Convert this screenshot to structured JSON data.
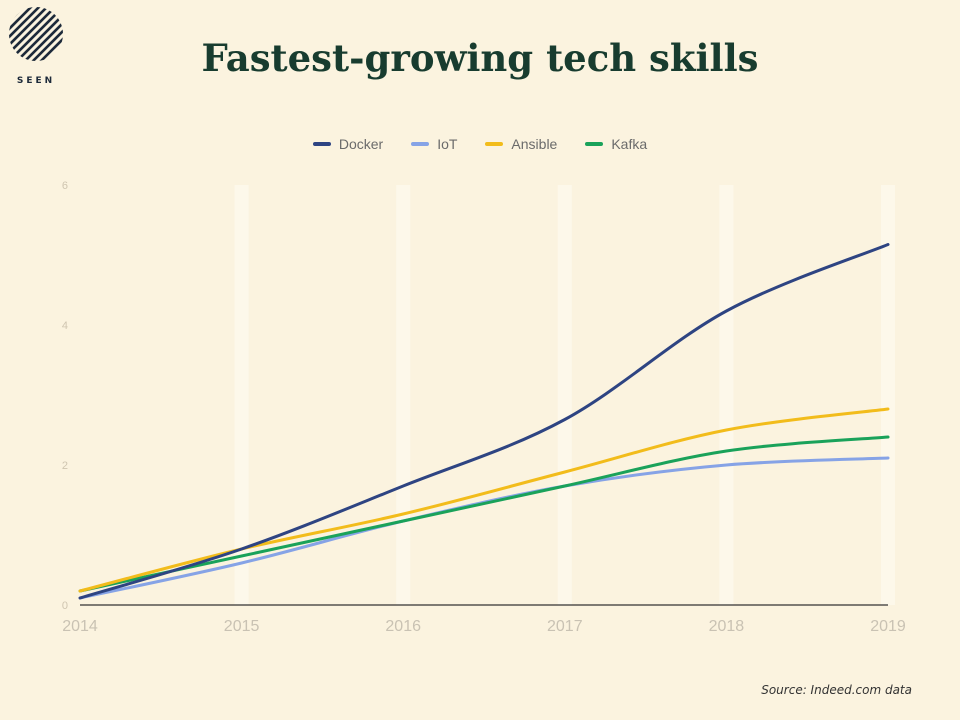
{
  "header": {
    "logo_text": "SEEN",
    "title": "Fastest-growing tech skills"
  },
  "footer": {
    "source": "Source: Indeed.com data"
  },
  "chart_data": {
    "type": "line",
    "title": "Fastest-growing tech skills",
    "xlabel": "",
    "ylabel": "",
    "x": [
      2014,
      2015,
      2016,
      2017,
      2018,
      2019
    ],
    "xticks": [
      "2014",
      "2015",
      "2016",
      "2017",
      "2018",
      "2019"
    ],
    "yticks": [
      "0",
      "2",
      "4",
      "6"
    ],
    "ylim": [
      0,
      6
    ],
    "grid": true,
    "legend": "top",
    "series": [
      {
        "name": "Docker",
        "color": "#2e4482",
        "values": [
          0.1,
          0.8,
          1.7,
          2.65,
          4.2,
          5.15
        ]
      },
      {
        "name": "IoT",
        "color": "#86a3e6",
        "values": [
          0.1,
          0.6,
          1.2,
          1.7,
          2.0,
          2.1
        ]
      },
      {
        "name": "Ansible",
        "color": "#f2bc1b",
        "values": [
          0.2,
          0.8,
          1.3,
          1.9,
          2.5,
          2.8
        ]
      },
      {
        "name": "Kafka",
        "color": "#1aa25a",
        "values": [
          0.2,
          0.7,
          1.2,
          1.7,
          2.2,
          2.4
        ]
      }
    ]
  }
}
